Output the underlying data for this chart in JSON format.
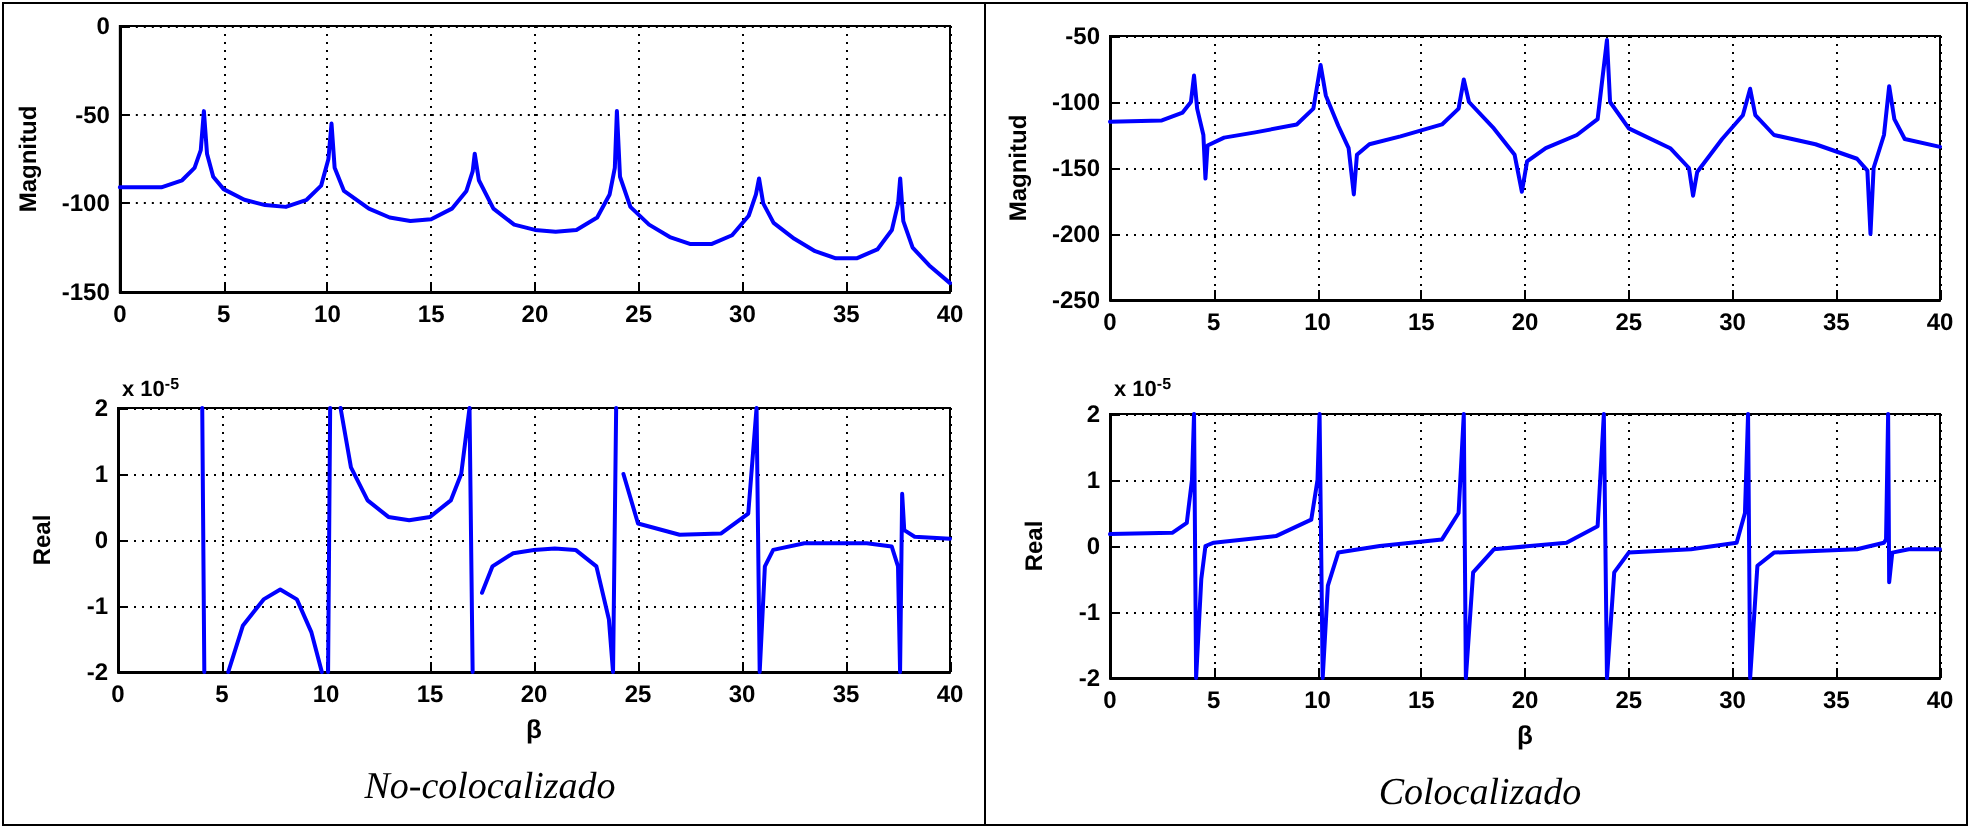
{
  "chart_data": [
    {
      "type": "line",
      "ylabel": "Magnitud",
      "xlim": [
        0,
        40
      ],
      "xticks": [
        0,
        5,
        10,
        15,
        20,
        25,
        30,
        35,
        40
      ],
      "ylim": [
        -150,
        0
      ],
      "yticks": [
        -150,
        -100,
        -50,
        0
      ],
      "grid": true,
      "marker": "none",
      "line_style": "solid",
      "series": [
        {
          "color": "#0000ff",
          "x": [
            0,
            2,
            3,
            3.6,
            3.9,
            4.05,
            4.2,
            4.5,
            5,
            6,
            7,
            8,
            9,
            9.7,
            10.05,
            10.2,
            10.35,
            10.8,
            12,
            13,
            14,
            15,
            16,
            16.7,
            17,
            17.1,
            17.3,
            18,
            19,
            20,
            21,
            22,
            23,
            23.6,
            23.85,
            23.95,
            24.1,
            24.6,
            25.5,
            26.5,
            27.5,
            28.5,
            29.5,
            30.3,
            30.65,
            30.8,
            31,
            31.5,
            32.5,
            33.5,
            34.5,
            35.5,
            36.5,
            37.2,
            37.5,
            37.6,
            37.75,
            38.2,
            39,
            40
          ],
          "values": [
            -91,
            -91,
            -87,
            -80,
            -70,
            -48,
            -72,
            -85,
            -92,
            -98,
            -101,
            -102,
            -98,
            -90,
            -75,
            -55,
            -80,
            -93,
            -103,
            -108,
            -110,
            -109,
            -103,
            -93,
            -82,
            -72,
            -87,
            -103,
            -112,
            -115,
            -116,
            -115,
            -108,
            -95,
            -80,
            -48,
            -85,
            -102,
            -112,
            -119,
            -123,
            -123,
            -118,
            -107,
            -95,
            -86,
            -100,
            -111,
            -120,
            -127,
            -131,
            -131,
            -126,
            -115,
            -100,
            -86,
            -110,
            -125,
            -135,
            -145
          ]
        }
      ]
    },
    {
      "type": "line",
      "xlabel": "β",
      "ylabel": "Real",
      "annotations": [
        "x 10$^{-5}$",
        "No-colocalizado"
      ],
      "xlim": [
        0,
        40
      ],
      "xticks": [
        0,
        5,
        10,
        15,
        20,
        25,
        30,
        35,
        40
      ],
      "ylim": [
        -2,
        2
      ],
      "yticks": [
        -2,
        -1,
        0,
        1,
        2
      ],
      "grid": true,
      "marker": "none",
      "line_style": "solid",
      "series": [
        {
          "color": "#0000ff",
          "x": [
            4.05,
            4.15,
            4.7,
            5.3,
            6,
            7,
            7.8,
            8.6,
            9.3,
            9.8,
            10,
            10.1,
            10.2,
            10.45,
            10.7,
            11.2,
            12,
            13,
            14,
            15,
            16,
            16.5,
            16.9,
            17.05,
            17.2,
            17.5,
            18,
            19,
            20,
            21,
            22,
            23,
            23.6,
            23.8,
            23.95,
            24.1,
            24.3,
            25,
            27,
            29,
            30.3,
            30.7,
            30.85,
            31.1,
            31.5,
            33,
            36,
            37.2,
            37.5,
            37.6,
            37.7,
            37.8,
            38.3,
            40
          ],
          "values": [
            2,
            -2,
            null,
            -2,
            -1.3,
            -0.9,
            -0.75,
            -0.9,
            -1.4,
            -2,
            null,
            -2,
            2,
            null,
            2,
            1.1,
            0.6,
            0.35,
            0.3,
            0.35,
            0.6,
            1,
            2,
            -2,
            null,
            -0.8,
            -0.4,
            -0.2,
            -0.15,
            -0.13,
            -0.15,
            -0.4,
            -1.2,
            -2,
            2,
            null,
            1,
            0.25,
            0.08,
            0.1,
            0.4,
            2,
            -2,
            -0.4,
            -0.15,
            -0.05,
            -0.05,
            -0.1,
            -0.4,
            -2,
            0.7,
            0.15,
            0.05,
            0.02
          ]
        }
      ]
    },
    {
      "type": "line",
      "ylabel": "Magnitud",
      "xlim": [
        0,
        40
      ],
      "xticks": [
        0,
        5,
        10,
        15,
        20,
        25,
        30,
        35,
        40
      ],
      "ylim": [
        -250,
        -50
      ],
      "yticks": [
        -250,
        -200,
        -150,
        -100,
        -50
      ],
      "grid": true,
      "marker": "none",
      "line_style": "solid",
      "series": [
        {
          "color": "#0000ff",
          "x": [
            0,
            2.5,
            3.5,
            3.9,
            4.05,
            4.2,
            4.5,
            4.6,
            4.7,
            5.5,
            7,
            9,
            9.8,
            10.15,
            10.4,
            11,
            11.5,
            11.75,
            11.9,
            12.5,
            14,
            16,
            16.8,
            17.05,
            17.3,
            18.5,
            19.5,
            19.85,
            20.1,
            21,
            22.5,
            23.5,
            23.95,
            24.1,
            25,
            27,
            27.9,
            28.1,
            28.3,
            29.5,
            30.5,
            30.85,
            31.1,
            32,
            34,
            36,
            36.5,
            36.65,
            36.8,
            37.3,
            37.55,
            37.8,
            38.3,
            40
          ],
          "values": [
            -115,
            -114,
            -108,
            -100,
            -80,
            -105,
            -125,
            -158,
            -133,
            -127,
            -123,
            -117,
            -105,
            -72,
            -95,
            -118,
            -135,
            -170,
            -140,
            -132,
            -126,
            -117,
            -105,
            -83,
            -100,
            -120,
            -140,
            -168,
            -145,
            -135,
            -125,
            -113,
            -53,
            -100,
            -120,
            -135,
            -150,
            -171,
            -153,
            -128,
            -110,
            -90,
            -110,
            -125,
            -132,
            -143,
            -152,
            -200,
            -150,
            -125,
            -88,
            -113,
            -128,
            -134
          ]
        }
      ]
    },
    {
      "type": "line",
      "xlabel": "β",
      "ylabel": "Real",
      "annotations": [
        "x 10$^{-5}$",
        "Colocalizado"
      ],
      "xlim": [
        0,
        40
      ],
      "xticks": [
        0,
        5,
        10,
        15,
        20,
        25,
        30,
        35,
        40
      ],
      "ylim": [
        -2,
        2
      ],
      "yticks": [
        -2,
        -1,
        0,
        1,
        2
      ],
      "grid": true,
      "marker": "none",
      "line_style": "solid",
      "series": [
        {
          "color": "#0000ff",
          "x": [
            0,
            3,
            3.7,
            3.95,
            4.05,
            4.15,
            4.4,
            4.6,
            5,
            8,
            9.7,
            10,
            10.1,
            10.25,
            10.5,
            11,
            13,
            16,
            16.8,
            17.05,
            17.15,
            17.5,
            18.5,
            22,
            23.5,
            23.8,
            23.95,
            24.3,
            25,
            28,
            30.2,
            30.6,
            30.75,
            30.85,
            31.2,
            32,
            36,
            37.3,
            37.4,
            37.5,
            37.55,
            37.7,
            38.5,
            40
          ],
          "values": [
            0.18,
            0.2,
            0.35,
            1,
            2,
            -2,
            -0.5,
            0,
            0.05,
            0.15,
            0.4,
            1,
            2,
            -2,
            -0.6,
            -0.1,
            0,
            0.1,
            0.5,
            2,
            -2,
            -0.4,
            -0.05,
            0.05,
            0.3,
            2,
            -2,
            -0.4,
            -0.1,
            -0.05,
            0.05,
            0.5,
            2,
            -2,
            -0.3,
            -0.1,
            -0.05,
            0.05,
            0.1,
            2,
            -0.55,
            -0.1,
            -0.05,
            -0.05
          ]
        }
      ]
    }
  ]
}
